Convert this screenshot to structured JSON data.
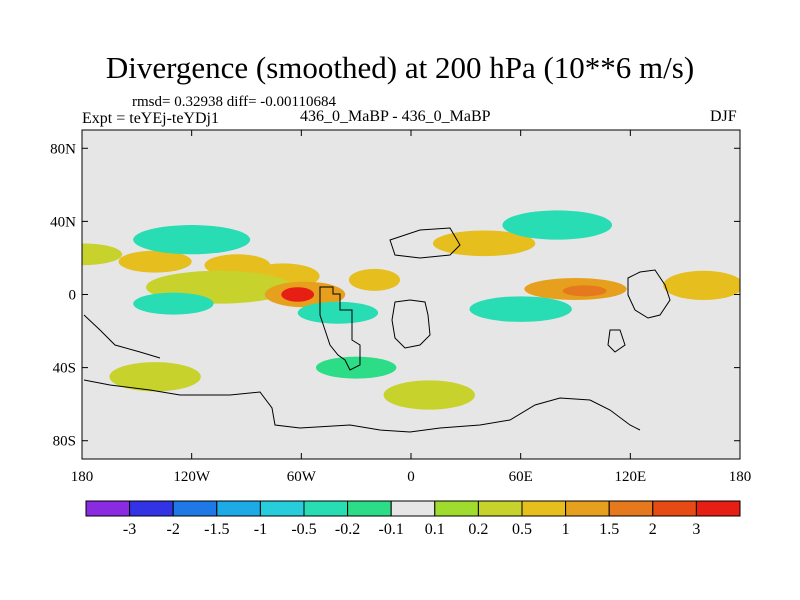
{
  "title": "Divergence (smoothed) at 200 hPa (10**6 m/s)",
  "stats": {
    "text": "rmsd= 0.32938 diff= -0.00110684"
  },
  "experiment": {
    "text": "Expt = teYEj-teYDj1"
  },
  "center_label": {
    "text": "436_0_MaBP - 436_0_MaBP"
  },
  "season": {
    "text": "DJF"
  },
  "chart_data": {
    "type": "heatmap",
    "title": "Divergence (smoothed) at 200 hPa (10**6 m/s)",
    "xlabel": "",
    "ylabel": "",
    "xlim": [
      -180,
      180
    ],
    "ylim": [
      -90,
      90
    ],
    "x_ticks": [
      {
        "value": -180,
        "label": "180"
      },
      {
        "value": -120,
        "label": "120W"
      },
      {
        "value": -60,
        "label": "60W"
      },
      {
        "value": 0,
        "label": "0"
      },
      {
        "value": 60,
        "label": "60E"
      },
      {
        "value": 120,
        "label": "120E"
      },
      {
        "value": 180,
        "label": "180"
      }
    ],
    "y_ticks": [
      {
        "value": 80,
        "label": "80N"
      },
      {
        "value": 40,
        "label": "40N"
      },
      {
        "value": 0,
        "label": "0"
      },
      {
        "value": -40,
        "label": "40S"
      },
      {
        "value": -80,
        "label": "80S"
      }
    ],
    "colorbar": {
      "colors": [
        "#8a2be2",
        "#3333e6",
        "#1e78e6",
        "#1eaae6",
        "#28cddc",
        "#28dcb4",
        "#2ddc87",
        "#e6e6e6",
        "#a0dc2d",
        "#c8d22d",
        "#e6be1e",
        "#e6a01e",
        "#e6781e",
        "#e64b14",
        "#e61e14"
      ],
      "labels": [
        "-3",
        "-2",
        "-1.5",
        "-1",
        "-0.5",
        "-0.2",
        "-0.1",
        "0.1",
        "0.2",
        "0.5",
        "1",
        "1.5",
        "2",
        "3"
      ]
    },
    "features": [
      {
        "lon": -180,
        "lat": 22,
        "rx": 22,
        "ry": 6,
        "value": 0.3
      },
      {
        "lon": -140,
        "lat": 18,
        "rx": 20,
        "ry": 6,
        "value": 0.6
      },
      {
        "lon": -95,
        "lat": 16,
        "rx": 18,
        "ry": 6,
        "value": 0.5
      },
      {
        "lon": -70,
        "lat": 10,
        "rx": 20,
        "ry": 7,
        "value": 0.5
      },
      {
        "lon": -105,
        "lat": 4,
        "rx": 40,
        "ry": 9,
        "value": 0.4
      },
      {
        "lon": -58,
        "lat": 0,
        "rx": 22,
        "ry": 7,
        "value": 1.0
      },
      {
        "lon": -62,
        "lat": 0,
        "rx": 9,
        "ry": 4,
        "value": 3.0
      },
      {
        "lon": -20,
        "lat": 8,
        "rx": 14,
        "ry": 6,
        "value": 0.6
      },
      {
        "lon": 40,
        "lat": 28,
        "rx": 28,
        "ry": 7,
        "value": 0.6
      },
      {
        "lon": 90,
        "lat": 3,
        "rx": 28,
        "ry": 6,
        "value": 1.0
      },
      {
        "lon": 95,
        "lat": 2,
        "rx": 12,
        "ry": 3,
        "value": 1.5
      },
      {
        "lon": 160,
        "lat": 5,
        "rx": 22,
        "ry": 8,
        "value": 0.6
      },
      {
        "lon": -130,
        "lat": -5,
        "rx": 22,
        "ry": 6,
        "value": -0.5
      },
      {
        "lon": -40,
        "lat": -10,
        "rx": 22,
        "ry": 6,
        "value": -0.5
      },
      {
        "lon": 60,
        "lat": -8,
        "rx": 28,
        "ry": 7,
        "value": -0.5
      },
      {
        "lon": -120,
        "lat": 30,
        "rx": 32,
        "ry": 8,
        "value": -0.5
      },
      {
        "lon": 80,
        "lat": 38,
        "rx": 30,
        "ry": 8,
        "value": -0.3
      },
      {
        "lon": -140,
        "lat": -45,
        "rx": 25,
        "ry": 8,
        "value": 0.3
      },
      {
        "lon": 10,
        "lat": -55,
        "rx": 25,
        "ry": 8,
        "value": 0.3
      },
      {
        "lon": -30,
        "lat": -40,
        "rx": 22,
        "ry": 6,
        "value": -0.2
      }
    ]
  }
}
